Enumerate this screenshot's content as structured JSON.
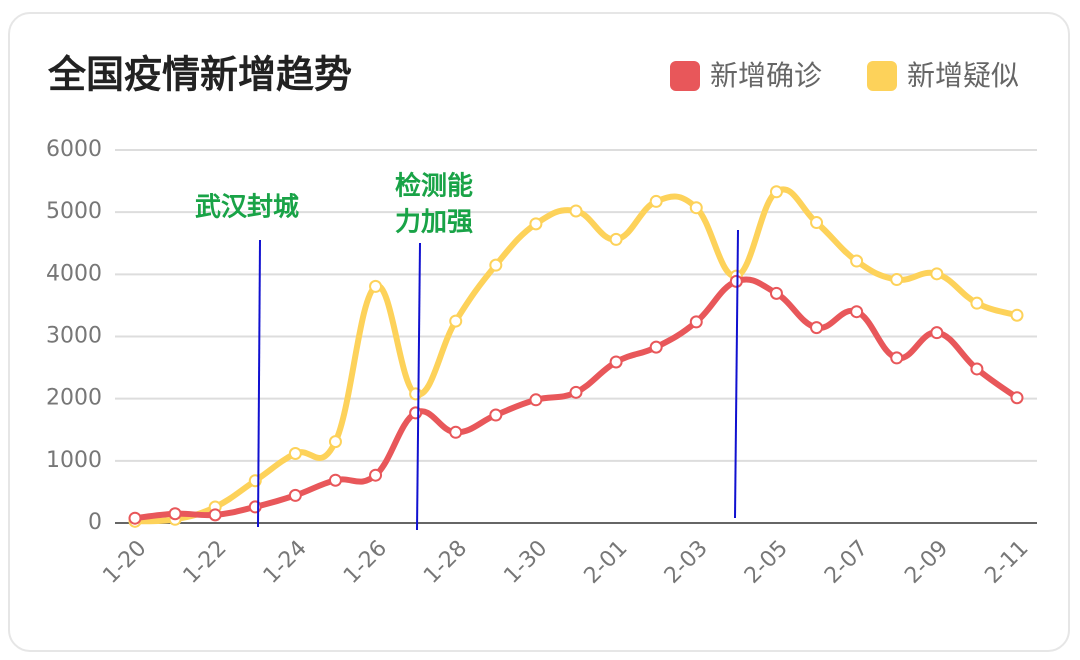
{
  "chart_data": {
    "type": "line",
    "title": "全国疫情新增趋势",
    "categories": [
      "1-20",
      null,
      "1-22",
      null,
      "1-24",
      null,
      "1-26",
      null,
      "1-28",
      null,
      "1-30",
      null,
      "2-01",
      null,
      "2-03",
      null,
      "2-05",
      null,
      "2-07",
      null,
      "2-09",
      null,
      "2-11"
    ],
    "series": [
      {
        "name": "新增确诊",
        "color": "#e8575a",
        "values": [
          77,
          149,
          131,
          259,
          444,
          688,
          769,
          1771,
          1459,
          1737,
          1982,
          2102,
          2590,
          2829,
          3235,
          3887,
          3694,
          3143,
          3399,
          2656,
          3062,
          2478,
          2015
        ]
      },
      {
        "name": "新增疑似",
        "color": "#fdd25a",
        "values": [
          27,
          60,
          257,
          680,
          1118,
          1309,
          3806,
          2077,
          3248,
          4148,
          4812,
          5019,
          4562,
          5173,
          5072,
          3971,
          5328,
          4833,
          4214,
          3916,
          4008,
          3536,
          3342
        ]
      }
    ],
    "ylim": [
      0,
      6000
    ],
    "yticks": [
      0,
      1000,
      2000,
      3000,
      4000,
      5000,
      6000
    ],
    "grid": true,
    "legend": "top-right",
    "annotations": [
      {
        "text": [
          "武汉封城"
        ]
      },
      {
        "text": [
          "检测能",
          "力加强"
        ]
      }
    ]
  }
}
